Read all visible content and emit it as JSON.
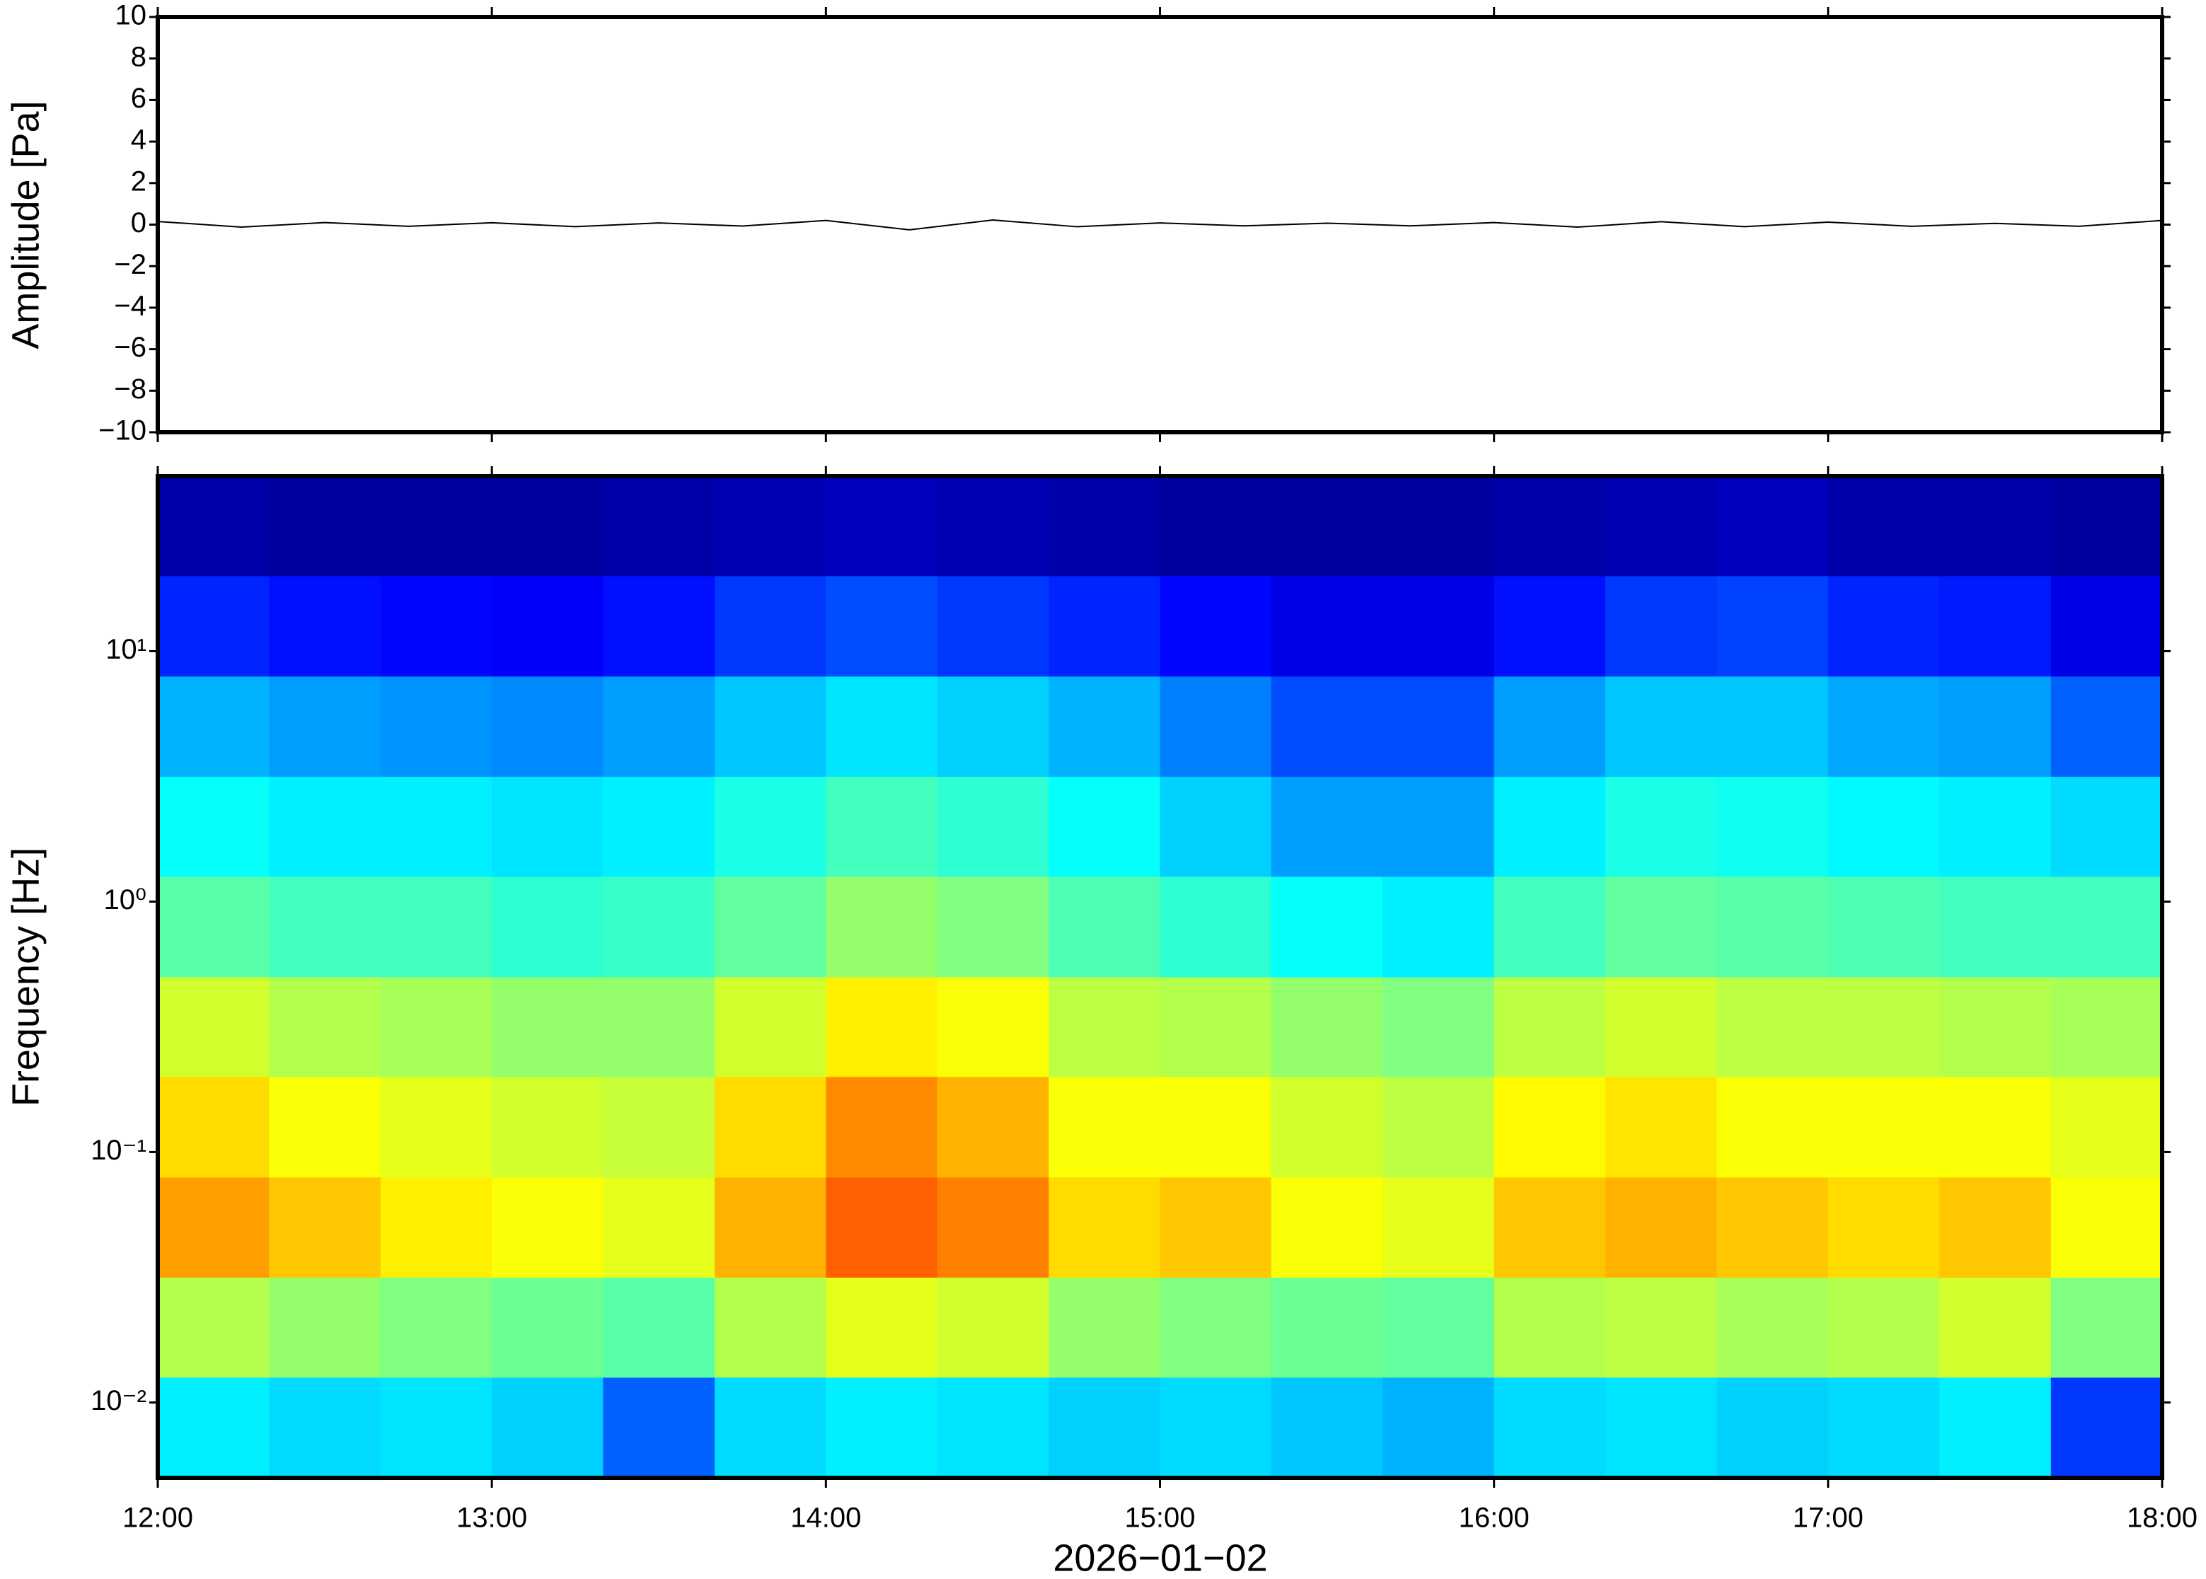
{
  "chart_data": [
    {
      "type": "line",
      "ylabel": "Amplitude [Pa]",
      "color": "#000000",
      "x": [
        12,
        12.25,
        12.5,
        12.75,
        13,
        13.25,
        13.5,
        13.75,
        14,
        14.25,
        14.5,
        14.75,
        15,
        15.25,
        15.5,
        15.75,
        16,
        16.25,
        16.5,
        16.75,
        17,
        17.25,
        17.5,
        17.75,
        18
      ],
      "values": [
        0.15,
        -0.12,
        0.1,
        -0.08,
        0.09,
        -0.1,
        0.08,
        -0.07,
        0.2,
        -0.25,
        0.22,
        -0.1,
        0.08,
        -0.06,
        0.07,
        -0.06,
        0.1,
        -0.12,
        0.14,
        -0.1,
        0.12,
        -0.08,
        0.06,
        -0.08,
        0.2
      ],
      "xlim": [
        12,
        18
      ],
      "ylim": [
        -10,
        10
      ],
      "yticks": [
        {
          "value": -10,
          "label": "−10"
        },
        {
          "value": -8,
          "label": "−8"
        },
        {
          "value": -6,
          "label": "−6"
        },
        {
          "value": -4,
          "label": "−4"
        },
        {
          "value": -2,
          "label": "−2"
        },
        0,
        2,
        4,
        6,
        8,
        10
      ]
    },
    {
      "type": "heatmap",
      "ylabel": "Frequency [Hz]",
      "xlabel": "2026−01−02",
      "colormap": "jet",
      "yscale": "log",
      "xlim": [
        12,
        18
      ],
      "ylim": [
        0.005,
        50
      ],
      "xticks": [
        {
          "value": 12,
          "label": "12:00"
        },
        {
          "value": 13,
          "label": "13:00"
        },
        {
          "value": 14,
          "label": "14:00"
        },
        {
          "value": 15,
          "label": "15:00"
        },
        {
          "value": 16,
          "label": "16:00"
        },
        {
          "value": 17,
          "label": "17:00"
        },
        {
          "value": 18,
          "label": "18:00"
        }
      ],
      "yticks": [
        {
          "value": 0.01,
          "label": "10⁻²"
        },
        {
          "value": 0.1,
          "label": "10⁻¹"
        },
        {
          "value": 1,
          "label": "10⁰"
        },
        {
          "value": 10,
          "label": "10¹"
        }
      ],
      "xbins": [
        12,
        12.333,
        12.667,
        13,
        13.333,
        13.667,
        14,
        14.333,
        14.667,
        15,
        15.333,
        15.667,
        16,
        16.333,
        16.667,
        17,
        17.333,
        17.667,
        18
      ],
      "ybins": [
        0.005,
        0.0126,
        0.0316,
        0.0794,
        0.2,
        0.5,
        1.26,
        3.16,
        7.94,
        20,
        50
      ],
      "values": [
        [
          0.36,
          0.34,
          0.35,
          0.33,
          0.22,
          0.34,
          0.36,
          0.35,
          0.33,
          0.34,
          0.32,
          0.3,
          0.34,
          0.35,
          0.33,
          0.34,
          0.36,
          0.18
        ],
        [
          0.55,
          0.52,
          0.5,
          0.48,
          0.46,
          0.55,
          0.6,
          0.58,
          0.52,
          0.5,
          0.48,
          0.47,
          0.55,
          0.56,
          0.54,
          0.55,
          0.58,
          0.5
        ],
        [
          0.72,
          0.68,
          0.64,
          0.62,
          0.6,
          0.7,
          0.78,
          0.75,
          0.66,
          0.68,
          0.62,
          0.6,
          0.68,
          0.7,
          0.68,
          0.66,
          0.68,
          0.62
        ],
        [
          0.66,
          0.62,
          0.6,
          0.58,
          0.57,
          0.66,
          0.74,
          0.7,
          0.62,
          0.62,
          0.58,
          0.56,
          0.63,
          0.65,
          0.62,
          0.62,
          0.62,
          0.6
        ],
        [
          0.58,
          0.55,
          0.54,
          0.52,
          0.52,
          0.58,
          0.64,
          0.62,
          0.56,
          0.55,
          0.52,
          0.5,
          0.56,
          0.58,
          0.56,
          0.56,
          0.55,
          0.54
        ],
        [
          0.46,
          0.44,
          0.44,
          0.42,
          0.43,
          0.47,
          0.52,
          0.5,
          0.45,
          0.42,
          0.38,
          0.36,
          0.44,
          0.47,
          0.46,
          0.45,
          0.44,
          0.44
        ],
        [
          0.38,
          0.36,
          0.36,
          0.35,
          0.36,
          0.4,
          0.44,
          0.42,
          0.38,
          0.33,
          0.28,
          0.28,
          0.36,
          0.4,
          0.39,
          0.37,
          0.36,
          0.34
        ],
        [
          0.3,
          0.28,
          0.27,
          0.26,
          0.28,
          0.32,
          0.35,
          0.33,
          0.3,
          0.25,
          0.2,
          0.2,
          0.28,
          0.32,
          0.32,
          0.29,
          0.28,
          0.22
        ],
        [
          0.16,
          0.14,
          0.13,
          0.12,
          0.14,
          0.18,
          0.2,
          0.18,
          0.16,
          0.13,
          0.1,
          0.1,
          0.14,
          0.18,
          0.19,
          0.16,
          0.15,
          0.1
        ],
        [
          0.04,
          0.03,
          0.03,
          0.03,
          0.04,
          0.05,
          0.06,
          0.05,
          0.04,
          0.03,
          0.03,
          0.03,
          0.04,
          0.05,
          0.06,
          0.04,
          0.04,
          0.03
        ]
      ]
    }
  ]
}
